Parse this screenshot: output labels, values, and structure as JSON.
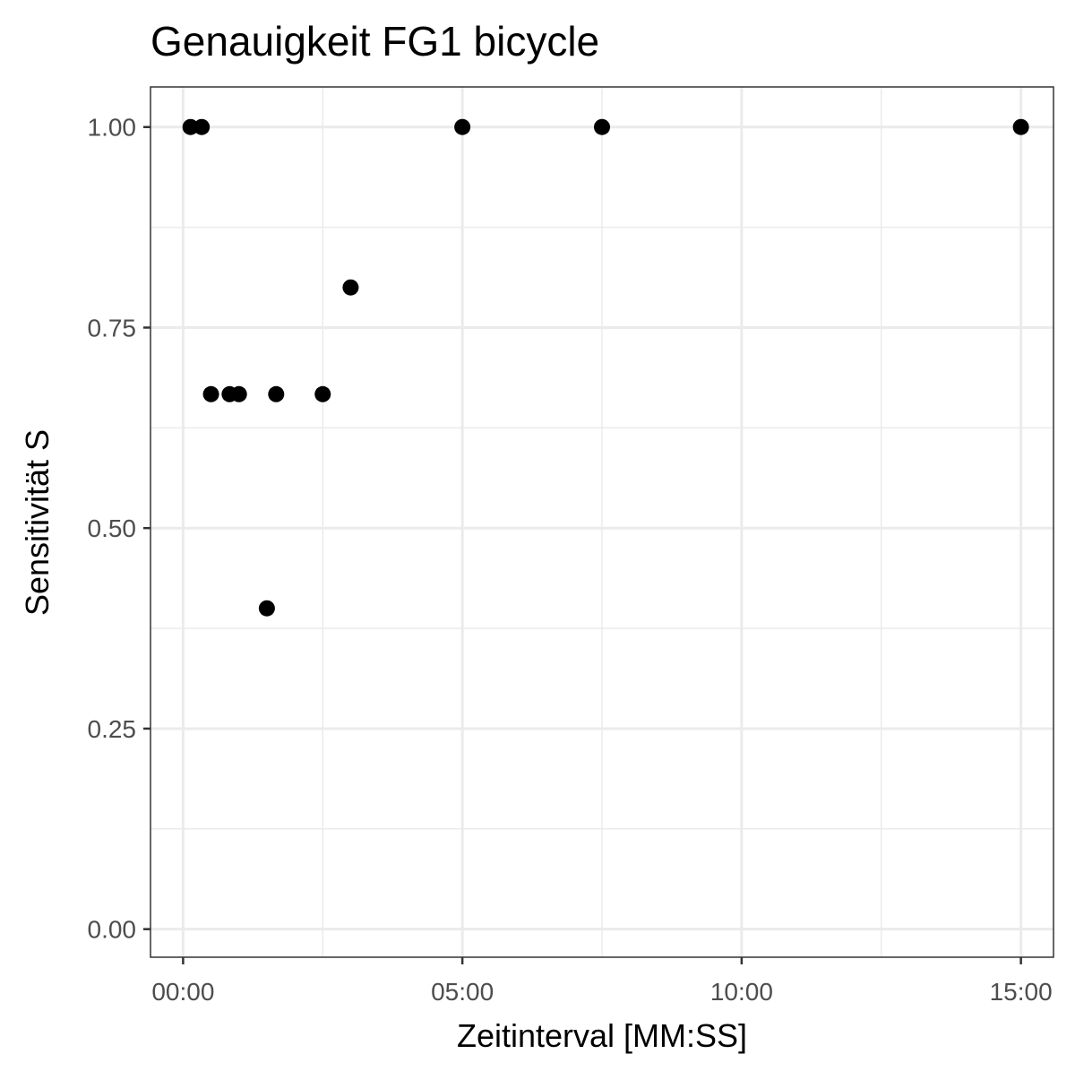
{
  "chart_data": {
    "type": "scatter",
    "title": "Genauigkeit FG1 bicycle",
    "xlabel": "Zeitinterval [MM:SS]",
    "ylabel": "Sensitivität S",
    "x_unit": "seconds",
    "xlim": [
      -35,
      935
    ],
    "ylim": [
      -0.035,
      1.05
    ],
    "x_major_ticks": [
      {
        "value": 0,
        "label": "00:00"
      },
      {
        "value": 300,
        "label": "05:00"
      },
      {
        "value": 600,
        "label": "10:00"
      },
      {
        "value": 900,
        "label": "15:00"
      }
    ],
    "x_minor_ticks": [
      150,
      450,
      750
    ],
    "y_major_ticks": [
      {
        "value": 0.0,
        "label": "0.00"
      },
      {
        "value": 0.25,
        "label": "0.25"
      },
      {
        "value": 0.5,
        "label": "0.50"
      },
      {
        "value": 0.75,
        "label": "0.75"
      },
      {
        "value": 1.0,
        "label": "1.00"
      }
    ],
    "y_minor_ticks": [
      0.125,
      0.375,
      0.625,
      0.875
    ],
    "grid": true,
    "legend": "none",
    "point_color": "#000000",
    "points": [
      {
        "x": 8,
        "y": 1.0
      },
      {
        "x": 20,
        "y": 1.0
      },
      {
        "x": 30,
        "y": 0.667
      },
      {
        "x": 50,
        "y": 0.667
      },
      {
        "x": 60,
        "y": 0.667
      },
      {
        "x": 90,
        "y": 0.4
      },
      {
        "x": 100,
        "y": 0.667
      },
      {
        "x": 150,
        "y": 0.667
      },
      {
        "x": 180,
        "y": 0.8
      },
      {
        "x": 300,
        "y": 1.0
      },
      {
        "x": 450,
        "y": 1.0
      },
      {
        "x": 900,
        "y": 1.0
      }
    ]
  }
}
